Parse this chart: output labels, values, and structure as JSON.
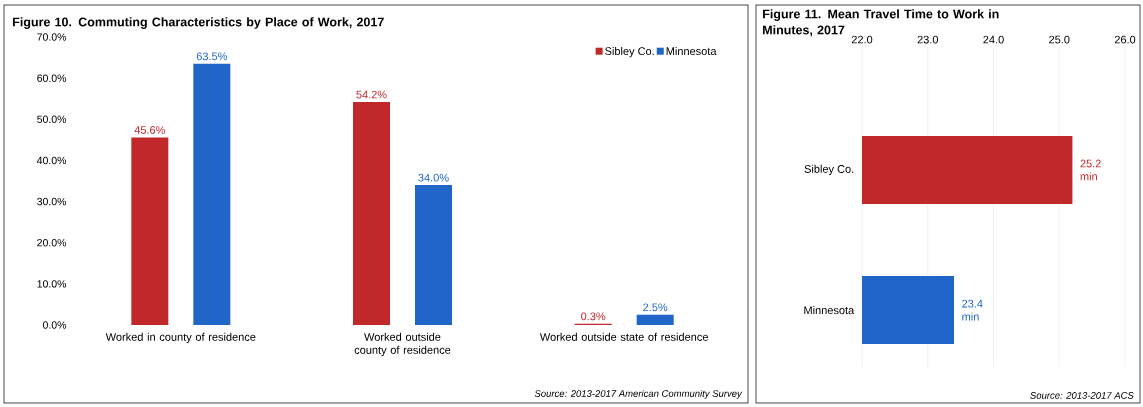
{
  "chart_data": [
    {
      "type": "bar",
      "title": "Figure 10. Commuting Characteristics by Place of Work, 2017",
      "categories": [
        "Worked in county of residence",
        "Worked outside county of residence",
        "Worked outside state of residence"
      ],
      "series": [
        {
          "name": "Sibley Co.",
          "color": "#c0282a",
          "values": [
            45.6,
            54.2,
            0.3
          ],
          "value_labels": [
            "45.6%",
            "54.2%",
            "0.3%"
          ]
        },
        {
          "name": "Minnesota",
          "color": "#1f66c8",
          "values": [
            63.5,
            34.0,
            2.5
          ],
          "value_labels": [
            "63.5%",
            "34.0%",
            "2.5%"
          ]
        }
      ],
      "ylim": [
        0,
        70
      ],
      "yticks": [
        {
          "value": 0,
          "label": "0.0%"
        },
        {
          "value": 10,
          "label": "10.0%"
        },
        {
          "value": 20,
          "label": "20.0%"
        },
        {
          "value": 30,
          "label": "30.0%"
        },
        {
          "value": 40,
          "label": "40.0%"
        },
        {
          "value": 50,
          "label": "50.0%"
        },
        {
          "value": 60,
          "label": "60.0%"
        },
        {
          "value": 70,
          "label": "70.0%"
        }
      ],
      "legend": "top right",
      "annotations": [
        "Source: 2013-2017 American Community Survey"
      ]
    },
    {
      "type": "bar",
      "orientation": "horizontal",
      "title": "Figure 11. Mean Travel Time to Work in Minutes, 2017",
      "categories": [
        "Sibley Co.",
        "Minnesota"
      ],
      "values": [
        25.2,
        23.4
      ],
      "colors": [
        "#c0282a",
        "#1f66c8"
      ],
      "value_labels": [
        "25.2 min",
        "23.4 min"
      ],
      "xlim": [
        22,
        26
      ],
      "xticks": [
        {
          "value": 22,
          "label": "22.0"
        },
        {
          "value": 23,
          "label": "23.0"
        },
        {
          "value": 24,
          "label": "24.0"
        },
        {
          "value": 25,
          "label": "25.0"
        },
        {
          "value": 26,
          "label": "26.0"
        }
      ],
      "grid": "x",
      "annotations": [
        "Source: 2013-2017 ACS"
      ]
    }
  ]
}
